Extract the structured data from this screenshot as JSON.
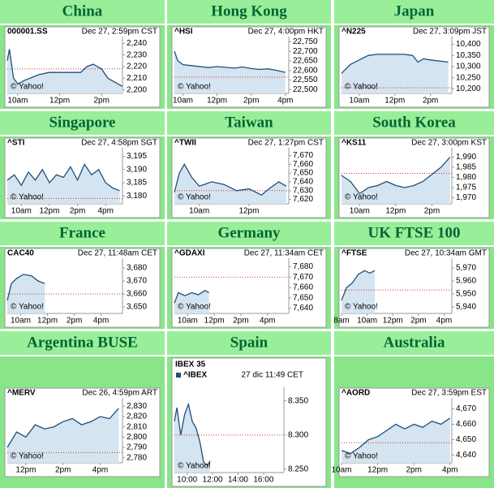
{
  "chart_data": [
    {
      "type": "line",
      "title": "China",
      "ticker": "000001.SS",
      "timestamp": "Dec 27, 2:59pm CST",
      "watermark": "© Yahoo!",
      "x": [
        9.5,
        9.6,
        9.8,
        10,
        10.3,
        11,
        11.5,
        13,
        13.3,
        13.6,
        14,
        14.3,
        14.6,
        15
      ],
      "values": [
        2225,
        2235,
        2210,
        2205,
        2208,
        2213,
        2215,
        2215,
        2220,
        2222,
        2218,
        2210,
        2207,
        2203
      ],
      "ref": 2218,
      "xlim": [
        9.5,
        15
      ],
      "ylim": [
        2197,
        2243
      ],
      "xticks": [
        {
          "value": 10,
          "label": "10am"
        },
        {
          "value": 12,
          "label": "12pm"
        },
        {
          "value": 14,
          "label": "2pm"
        }
      ],
      "yticks": [
        {
          "value": 2200,
          "label": "2,200"
        },
        {
          "value": 2210,
          "label": "2,210"
        },
        {
          "value": 2220,
          "label": "2,220"
        },
        {
          "value": 2230,
          "label": "2,230"
        },
        {
          "value": 2240,
          "label": "2,240"
        }
      ]
    },
    {
      "type": "line",
      "title": "Hong Kong",
      "ticker": "^HSI",
      "timestamp": "Dec 27, 4:00pm HKT",
      "watermark": "© Yahoo!",
      "x": [
        9.5,
        9.7,
        10,
        10.5,
        11,
        11.5,
        12,
        13,
        13.5,
        14,
        14.5,
        15,
        15.5,
        16
      ],
      "values": [
        22700,
        22650,
        22630,
        22625,
        22620,
        22615,
        22620,
        22612,
        22618,
        22610,
        22605,
        22608,
        22600,
        22590
      ],
      "ref": 22565,
      "xlim": [
        9.5,
        16.2
      ],
      "ylim": [
        22480,
        22760
      ],
      "xticks": [
        {
          "value": 10,
          "label": "10am"
        },
        {
          "value": 12,
          "label": "12pm"
        },
        {
          "value": 14,
          "label": "2pm"
        },
        {
          "value": 16,
          "label": "4pm"
        }
      ],
      "yticks": [
        {
          "value": 22500,
          "label": "22,500"
        },
        {
          "value": 22550,
          "label": "22,550"
        },
        {
          "value": 22600,
          "label": "22,600"
        },
        {
          "value": 22650,
          "label": "22,650"
        },
        {
          "value": 22700,
          "label": "22,700"
        },
        {
          "value": 22750,
          "label": "22,750"
        }
      ]
    },
    {
      "type": "line",
      "title": "Japan",
      "ticker": "^N225",
      "timestamp": "Dec 27, 3:09pm JST",
      "watermark": "© Yahoo!",
      "x": [
        9,
        9.5,
        10,
        10.5,
        11,
        11.5,
        12.5,
        13,
        13.3,
        13.6,
        14,
        15
      ],
      "values": [
        10270,
        10310,
        10330,
        10350,
        10355,
        10355,
        10355,
        10350,
        10320,
        10335,
        10330,
        10320
      ],
      "ref": 10205,
      "xlim": [
        9,
        15.2
      ],
      "ylim": [
        10180,
        10420
      ],
      "xticks": [
        {
          "value": 10,
          "label": "10am"
        },
        {
          "value": 12,
          "label": "12pm"
        },
        {
          "value": 14,
          "label": "2pm"
        }
      ],
      "yticks": [
        {
          "value": 10200,
          "label": "10,200"
        },
        {
          "value": 10250,
          "label": "10,250"
        },
        {
          "value": 10300,
          "label": "10,300"
        },
        {
          "value": 10350,
          "label": "10,350"
        },
        {
          "value": 10400,
          "label": "10,400"
        }
      ]
    },
    {
      "type": "line",
      "title": "Singapore",
      "ticker": "^STI",
      "timestamp": "Dec 27, 4:58pm SGT",
      "watermark": "© Yahoo!",
      "x": [
        9,
        9.5,
        10,
        10.5,
        11,
        11.5,
        12,
        12.5,
        13,
        13.5,
        14,
        14.5,
        15,
        15.5,
        16,
        16.5,
        17
      ],
      "values": [
        3186,
        3188,
        3184,
        3189,
        3186,
        3190,
        3185,
        3188,
        3187,
        3191,
        3186,
        3192,
        3188,
        3190,
        3185,
        3183,
        3182
      ],
      "ref": 3179,
      "xlim": [
        9,
        17.2
      ],
      "ylim": [
        3177,
        3197
      ],
      "xticks": [
        {
          "value": 10,
          "label": "10am"
        },
        {
          "value": 12,
          "label": "12pm"
        },
        {
          "value": 14,
          "label": "2pm"
        },
        {
          "value": 16,
          "label": "4pm"
        }
      ],
      "yticks": [
        {
          "value": 3180,
          "label": "3,180"
        },
        {
          "value": 3185,
          "label": "3,185"
        },
        {
          "value": 3190,
          "label": "3,190"
        },
        {
          "value": 3195,
          "label": "3,195"
        }
      ]
    },
    {
      "type": "line",
      "title": "Taiwan",
      "ticker": "^TWII",
      "timestamp": "Dec 27, 1:27pm CST",
      "watermark": "© Yahoo!",
      "x": [
        9,
        9.2,
        9.4,
        9.7,
        10,
        10.5,
        11,
        11.5,
        12,
        12.5,
        12.8,
        13.2,
        13.5
      ],
      "values": [
        7628,
        7650,
        7660,
        7645,
        7635,
        7640,
        7637,
        7630,
        7632,
        7625,
        7632,
        7640,
        7635
      ],
      "ref": 7630,
      "xlim": [
        9,
        13.6
      ],
      "ylim": [
        7615,
        7675
      ],
      "xticks": [
        {
          "value": 10,
          "label": "10am"
        },
        {
          "value": 12,
          "label": "12pm"
        }
      ],
      "yticks": [
        {
          "value": 7620,
          "label": "7,620"
        },
        {
          "value": 7630,
          "label": "7,630"
        },
        {
          "value": 7640,
          "label": "7,640"
        },
        {
          "value": 7650,
          "label": "7,650"
        },
        {
          "value": 7660,
          "label": "7,660"
        },
        {
          "value": 7670,
          "label": "7,670"
        }
      ]
    },
    {
      "type": "line",
      "title": "South Korea",
      "ticker": "^KS11",
      "timestamp": "Dec 27, 3:00pm KST",
      "watermark": "© Yahoo!",
      "x": [
        9,
        9.5,
        10,
        10.5,
        11,
        11.5,
        12,
        12.5,
        13,
        13.5,
        14.5,
        15
      ],
      "values": [
        1981,
        1978,
        1972,
        1975,
        1976,
        1978,
        1976,
        1975,
        1976,
        1978,
        1985,
        1990
      ],
      "ref": 1982,
      "xlim": [
        9,
        15.1
      ],
      "ylim": [
        1967,
        1993
      ],
      "xticks": [
        {
          "value": 10,
          "label": "10am"
        },
        {
          "value": 12,
          "label": "12pm"
        },
        {
          "value": 14,
          "label": "2pm"
        }
      ],
      "yticks": [
        {
          "value": 1970,
          "label": "1,970"
        },
        {
          "value": 1975,
          "label": "1,975"
        },
        {
          "value": 1980,
          "label": "1,980"
        },
        {
          "value": 1985,
          "label": "1,985"
        },
        {
          "value": 1990,
          "label": "1,990"
        }
      ]
    },
    {
      "type": "line",
      "title": "France",
      "ticker": "CAC40",
      "timestamp": "Dec 27, 11:48am CET",
      "watermark": "© Yahoo!",
      "x": [
        9,
        9.3,
        9.7,
        10.2,
        10.8,
        11.3,
        11.8
      ],
      "values": [
        3655,
        3668,
        3672,
        3675,
        3674,
        3670,
        3668
      ],
      "ref": 3660,
      "xlim": [
        9,
        17.6
      ],
      "ylim": [
        3645,
        3685
      ],
      "xticks": [
        {
          "value": 10,
          "label": "10am"
        },
        {
          "value": 12,
          "label": "12pm"
        },
        {
          "value": 14,
          "label": "2pm"
        },
        {
          "value": 16,
          "label": "4pm"
        }
      ],
      "yticks": [
        {
          "value": 3650,
          "label": "3,650"
        },
        {
          "value": 3660,
          "label": "3,660"
        },
        {
          "value": 3670,
          "label": "3,670"
        },
        {
          "value": 3680,
          "label": "3,680"
        }
      ]
    },
    {
      "type": "line",
      "title": "Germany",
      "ticker": "^GDAXI",
      "timestamp": "Dec 27, 11:34am CET",
      "watermark": "© Yahoo!",
      "x": [
        9,
        9.3,
        9.8,
        10.3,
        10.8,
        11.3,
        11.6
      ],
      "values": [
        7645,
        7655,
        7652,
        7655,
        7653,
        7657,
        7655
      ],
      "ref": 7670,
      "xlim": [
        9,
        17.6
      ],
      "ylim": [
        7635,
        7685
      ],
      "xticks": [
        {
          "value": 10,
          "label": "10am"
        },
        {
          "value": 12,
          "label": "12pm"
        },
        {
          "value": 14,
          "label": "2pm"
        },
        {
          "value": 16,
          "label": "4pm"
        }
      ],
      "yticks": [
        {
          "value": 7640,
          "label": "7,640"
        },
        {
          "value": 7650,
          "label": "7,650"
        },
        {
          "value": 7660,
          "label": "7,660"
        },
        {
          "value": 7670,
          "label": "7,670"
        },
        {
          "value": 7680,
          "label": "7,680"
        }
      ]
    },
    {
      "type": "line",
      "title": "UK FTSE 100",
      "ticker": "^FTSE",
      "timestamp": "Dec 27, 10:34am GMT",
      "watermark": "© Yahoo!",
      "x": [
        8,
        8.4,
        8.8,
        9.3,
        9.8,
        10.2,
        10.6
      ],
      "values": [
        5945,
        5955,
        5958,
        5965,
        5968,
        5966,
        5968
      ],
      "ref": 5953,
      "xlim": [
        8,
        16.6
      ],
      "ylim": [
        5935,
        5975
      ],
      "xticks": [
        {
          "value": 8,
          "label": "8am"
        },
        {
          "value": 10,
          "label": "10am"
        },
        {
          "value": 12,
          "label": "12pm"
        },
        {
          "value": 14,
          "label": "2pm"
        },
        {
          "value": 16,
          "label": "4pm"
        }
      ],
      "yticks": [
        {
          "value": 5940,
          "label": "5,940"
        },
        {
          "value": 5950,
          "label": "5,950"
        },
        {
          "value": 5960,
          "label": "5,960"
        },
        {
          "value": 5970,
          "label": "5,970"
        }
      ]
    },
    {
      "type": "line",
      "title": "Argentina BUSE",
      "ticker": "^MERV",
      "timestamp": "Dec 26, 4:59pm ART",
      "watermark": "© Yahoo!",
      "x": [
        11,
        11.5,
        12,
        12.5,
        13,
        13.5,
        14,
        14.5,
        15,
        15.5,
        16,
        16.5,
        17
      ],
      "values": [
        2790,
        2805,
        2800,
        2812,
        2808,
        2810,
        2815,
        2818,
        2812,
        2815,
        2820,
        2818,
        2828
      ],
      "ref": 2785,
      "xlim": [
        11,
        17.2
      ],
      "ylim": [
        2775,
        2835
      ],
      "xticks": [
        {
          "value": 12,
          "label": "12pm"
        },
        {
          "value": 14,
          "label": "2pm"
        },
        {
          "value": 16,
          "label": "4pm"
        }
      ],
      "yticks": [
        {
          "value": 2780,
          "label": "2,780"
        },
        {
          "value": 2790,
          "label": "2,790"
        },
        {
          "value": 2800,
          "label": "2,800"
        },
        {
          "value": 2810,
          "label": "2,810"
        },
        {
          "value": 2820,
          "label": "2,820"
        },
        {
          "value": 2830,
          "label": "2,830"
        }
      ]
    },
    {
      "type": "line",
      "title": "Spain",
      "chart_title": "IBEX 35",
      "ticker": "^IBEX",
      "timestamp": "27 dic 11:49 CET",
      "watermark": "© Yahoo!",
      "x": [
        9,
        9.2,
        9.5,
        9.8,
        10.1,
        10.4,
        10.7,
        11,
        11.3,
        11.6,
        11.8
      ],
      "values": [
        8320,
        8340,
        8300,
        8330,
        8345,
        8320,
        8310,
        8290,
        8260,
        8255,
        8262
      ],
      "ref": 8300,
      "xlim": [
        9,
        17.6
      ],
      "ylim": [
        8245,
        8365
      ],
      "xticks": [
        {
          "value": 10,
          "label": "10:00"
        },
        {
          "value": 12,
          "label": "12:00"
        },
        {
          "value": 14,
          "label": "14:00"
        },
        {
          "value": 16,
          "label": "16:00"
        }
      ],
      "yticks": [
        {
          "value": 8250,
          "label": "8.250"
        },
        {
          "value": 8300,
          "label": "8.300"
        },
        {
          "value": 8350,
          "label": "8.350"
        }
      ]
    },
    {
      "type": "line",
      "title": "Australia",
      "ticker": "^AORD",
      "timestamp": "Dec 27, 3:59pm EST",
      "watermark": "© Yahoo!",
      "x": [
        10,
        10.5,
        11,
        11.5,
        12,
        12.5,
        13,
        13.5,
        14,
        14.5,
        15,
        15.5,
        16
      ],
      "values": [
        4643,
        4641,
        4645,
        4650,
        4652,
        4656,
        4660,
        4657,
        4660,
        4658,
        4662,
        4660,
        4664
      ],
      "ref": 4648,
      "xlim": [
        10,
        16.1
      ],
      "ylim": [
        4635,
        4675
      ],
      "xticks": [
        {
          "value": 10,
          "label": "10am"
        },
        {
          "value": 12,
          "label": "12pm"
        },
        {
          "value": 14,
          "label": "2pm"
        },
        {
          "value": 16,
          "label": "4pm"
        }
      ],
      "yticks": [
        {
          "value": 4640,
          "label": "4,640"
        },
        {
          "value": 4650,
          "label": "4,650"
        },
        {
          "value": 4660,
          "label": "4,660"
        },
        {
          "value": 4670,
          "label": "4,670"
        }
      ]
    }
  ]
}
